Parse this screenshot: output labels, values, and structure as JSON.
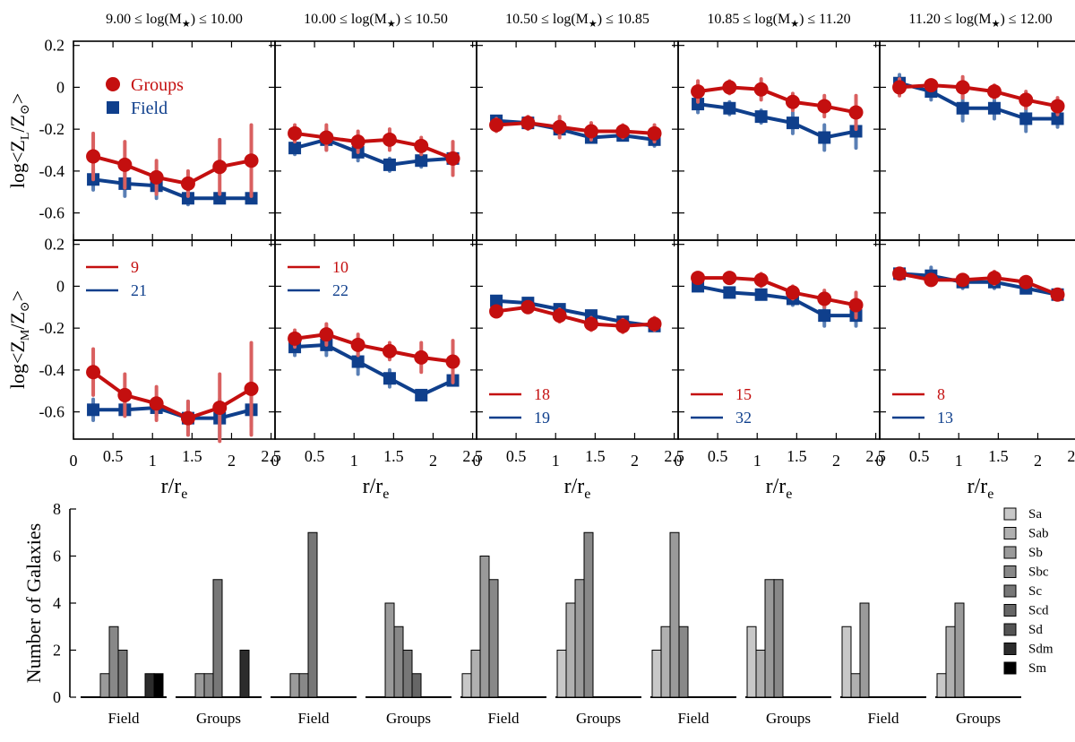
{
  "colors": {
    "groups": "#c40f0f",
    "field": "#0f3f8c",
    "groups_err": "#d96060",
    "field_err": "#5a7fb5"
  },
  "legend": {
    "groups": "Groups",
    "field": "Field"
  },
  "chart_data": [
    {
      "type": "line",
      "title": "metallicity radial profiles",
      "mass_bins": [
        {
          "lo": "9.00",
          "hi": "10.00",
          "label_mid": "≤ log(M",
          "label_star": "★",
          "label_end": ") ≤"
        },
        {
          "lo": "10.00",
          "hi": "10.50",
          "label_mid": "≤ log(M",
          "label_star": "★",
          "label_end": ") ≤"
        },
        {
          "lo": "10.50",
          "hi": "10.85",
          "label_mid": "≤ log(M",
          "label_star": "★",
          "label_end": ") ≤"
        },
        {
          "lo": "10.85",
          "hi": "11.20",
          "label_mid": "≤ log(M",
          "label_star": "★",
          "label_end": ") ≤"
        },
        {
          "lo": "11.20",
          "hi": "12.00",
          "label_mid": "≤ log(M",
          "label_star": "★",
          "label_end": ") ≤"
        }
      ],
      "xlabel": "r/r",
      "xlabel_sub": "e",
      "xticks": [
        "0",
        "0.5",
        "1",
        "1.5",
        "2",
        "2.5"
      ],
      "xlim": [
        0,
        2.55
      ],
      "x": [
        0.25,
        0.65,
        1.05,
        1.45,
        1.85,
        2.25
      ],
      "rows": [
        {
          "ylabel_pre": "log<Z",
          "ylabel_sub": "L",
          "ylabel_post": "/Z",
          "ylabel_sun": "⊙",
          "ylabel_end": ">",
          "ylim": [
            -0.73,
            0.22
          ],
          "yticks": [
            "0.2",
            "0",
            "-0.2",
            "-0.4",
            "-0.6"
          ],
          "panels": [
            {
              "groups": [
                -0.33,
                -0.37,
                -0.43,
                -0.46,
                -0.38,
                -0.35
              ],
              "groups_err": [
                0.11,
                0.11,
                0.08,
                0.06,
                0.13,
                0.17
              ],
              "field": [
                -0.44,
                -0.46,
                -0.47,
                -0.53,
                -0.53,
                -0.53
              ],
              "field_err": [
                0.05,
                0.06,
                0.06,
                0.03,
                0.02,
                0.02
              ]
            },
            {
              "groups": [
                -0.22,
                -0.24,
                -0.26,
                -0.25,
                -0.28,
                -0.34
              ],
              "groups_err": [
                0.04,
                0.06,
                0.05,
                0.05,
                0.04,
                0.08
              ],
              "field": [
                -0.29,
                -0.25,
                -0.31,
                -0.37,
                -0.35,
                -0.34
              ],
              "field_err": [
                0.03,
                0.05,
                0.04,
                0.03,
                0.03,
                0.03
              ]
            },
            {
              "groups": [
                -0.18,
                -0.17,
                -0.19,
                -0.21,
                -0.21,
                -0.22
              ],
              "groups_err": [
                0.03,
                0.03,
                0.05,
                0.04,
                0.03,
                0.04
              ],
              "field": [
                -0.16,
                -0.17,
                -0.2,
                -0.24,
                -0.23,
                -0.25
              ],
              "field_err": [
                0.02,
                0.02,
                0.02,
                0.02,
                0.02,
                0.03
              ]
            },
            {
              "groups": [
                -0.02,
                0.0,
                -0.01,
                -0.07,
                -0.09,
                -0.12
              ],
              "groups_err": [
                0.05,
                0.03,
                0.05,
                0.04,
                0.05,
                0.08
              ],
              "field": [
                -0.08,
                -0.1,
                -0.14,
                -0.17,
                -0.24,
                -0.21
              ],
              "field_err": [
                0.04,
                0.03,
                0.03,
                0.05,
                0.06,
                0.08
              ]
            },
            {
              "groups": [
                0.0,
                0.01,
                0.0,
                -0.02,
                -0.06,
                -0.09
              ],
              "groups_err": [
                0.04,
                0.02,
                0.05,
                0.03,
                0.04,
                0.04
              ],
              "field": [
                0.02,
                -0.02,
                -0.1,
                -0.1,
                -0.15,
                -0.15
              ],
              "field_err": [
                0.04,
                0.04,
                0.06,
                0.05,
                0.06,
                0.04
              ]
            }
          ]
        },
        {
          "ylabel_pre": "log<Z",
          "ylabel_sub": "M",
          "ylabel_post": "/Z",
          "ylabel_sun": "⊙",
          "ylabel_end": ">",
          "ylim": [
            -0.73,
            0.22
          ],
          "yticks": [
            "0.2",
            "0",
            "-0.2",
            "-0.4",
            "-0.6"
          ],
          "panels": [
            {
              "groups": [
                -0.41,
                -0.52,
                -0.56,
                -0.63,
                -0.58,
                -0.49
              ],
              "groups_err": [
                0.11,
                0.1,
                0.08,
                0.08,
                0.16,
                0.22
              ],
              "field": [
                -0.59,
                -0.59,
                -0.58,
                -0.63,
                -0.63,
                -0.59
              ],
              "field_err": [
                0.05,
                0.03,
                0.04,
                0.08,
                0.09,
                0.08
              ],
              "n_groups": "9",
              "n_field": "21",
              "legend_pos": "top"
            },
            {
              "groups": [
                -0.25,
                -0.23,
                -0.28,
                -0.31,
                -0.34,
                -0.36
              ],
              "groups_err": [
                0.04,
                0.05,
                0.05,
                0.04,
                0.07,
                0.1
              ],
              "field": [
                -0.29,
                -0.28,
                -0.36,
                -0.44,
                -0.52,
                -0.45
              ],
              "field_err": [
                0.04,
                0.05,
                0.06,
                0.04,
                0.02,
                0.02
              ],
              "n_groups": "10",
              "n_field": "22",
              "legend_pos": "top"
            },
            {
              "groups": [
                -0.12,
                -0.1,
                -0.14,
                -0.18,
                -0.19,
                -0.18
              ],
              "groups_err": [
                0.02,
                0.02,
                0.03,
                0.03,
                0.03,
                0.03
              ],
              "field": [
                -0.07,
                -0.08,
                -0.11,
                -0.14,
                -0.17,
                -0.19
              ],
              "field_err": [
                0.02,
                0.02,
                0.02,
                0.02,
                0.02,
                0.02
              ],
              "n_groups": "18",
              "n_field": "19",
              "legend_pos": "bottom"
            },
            {
              "groups": [
                0.04,
                0.04,
                0.03,
                -0.03,
                -0.06,
                -0.09
              ],
              "groups_err": [
                0.02,
                0.02,
                0.03,
                0.03,
                0.04,
                0.06
              ],
              "field": [
                0.0,
                -0.03,
                -0.04,
                -0.06,
                -0.14,
                -0.14
              ],
              "field_err": [
                0.02,
                0.02,
                0.02,
                0.03,
                0.05,
                0.05
              ],
              "n_groups": "15",
              "n_field": "32",
              "legend_pos": "bottom"
            },
            {
              "groups": [
                0.06,
                0.03,
                0.03,
                0.04,
                0.02,
                -0.04
              ],
              "groups_err": [
                0.02,
                0.02,
                0.02,
                0.03,
                0.02,
                0.02
              ],
              "field": [
                0.06,
                0.05,
                0.02,
                0.02,
                -0.01,
                -0.04
              ],
              "field_err": [
                0.02,
                0.04,
                0.03,
                0.03,
                0.02,
                0.02
              ],
              "n_groups": "8",
              "n_field": "13",
              "legend_pos": "bottom"
            }
          ]
        }
      ]
    },
    {
      "type": "bar",
      "title": "morphology histograms",
      "ylabel": "Number of Galaxies",
      "ylim": [
        0,
        8
      ],
      "yticks": [
        "0",
        "2",
        "4",
        "6",
        "8"
      ],
      "types": [
        "Sa",
        "Sab",
        "Sb",
        "Sbc",
        "Sc",
        "Scd",
        "Sd",
        "Sdm",
        "Sm"
      ],
      "type_colors": [
        "#c8c8c8",
        "#b0b0b0",
        "#9a9a9a",
        "#888888",
        "#777777",
        "#666666",
        "#545454",
        "#2c2c2c",
        "#000000"
      ],
      "groups": [
        {
          "label": "Field",
          "counts": [
            0,
            0,
            1,
            3,
            2,
            0,
            0,
            1,
            1
          ]
        },
        {
          "label": "Groups",
          "counts": [
            0,
            0,
            1,
            1,
            5,
            0,
            0,
            2,
            0
          ]
        },
        {
          "label": "Field",
          "counts": [
            0,
            0,
            1,
            1,
            7,
            0,
            0,
            0,
            0
          ]
        },
        {
          "label": "Groups",
          "counts": [
            0,
            0,
            4,
            3,
            2,
            1,
            0,
            0,
            0
          ]
        },
        {
          "label": "Field",
          "counts": [
            1,
            2,
            6,
            5,
            0,
            0,
            0,
            0,
            0
          ]
        },
        {
          "label": "Groups",
          "counts": [
            2,
            4,
            5,
            7,
            0,
            0,
            0,
            0,
            0
          ]
        },
        {
          "label": "Field",
          "counts": [
            2,
            3,
            7,
            3,
            0,
            0,
            0,
            0,
            0
          ]
        },
        {
          "label": "Groups",
          "counts": [
            3,
            2,
            5,
            5,
            0,
            0,
            0,
            0,
            0
          ]
        },
        {
          "label": "Field",
          "counts": [
            3,
            1,
            4,
            0,
            0,
            0,
            0,
            0,
            0
          ]
        },
        {
          "label": "Groups",
          "counts": [
            1,
            3,
            4,
            0,
            0,
            0,
            0,
            0,
            0
          ]
        }
      ]
    }
  ]
}
